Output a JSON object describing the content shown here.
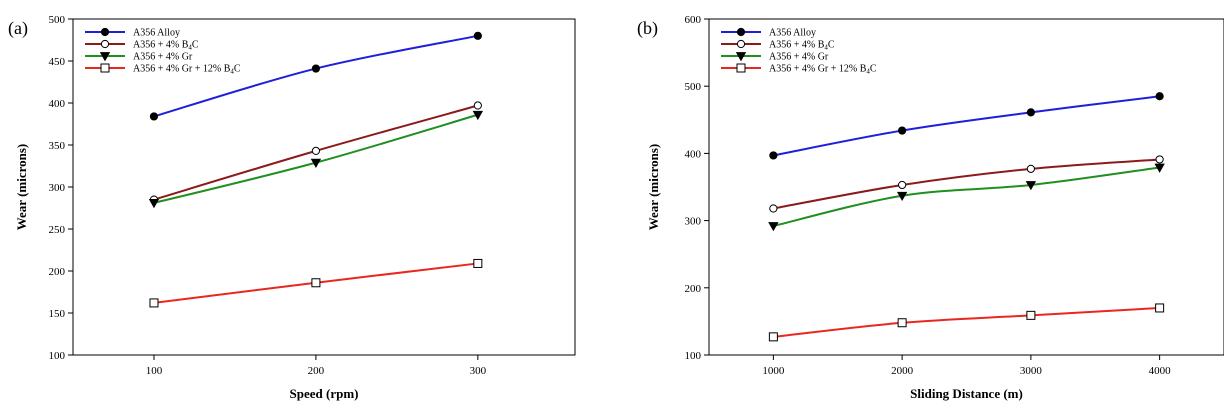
{
  "chart_data": [
    {
      "panel_label": "(a)",
      "type": "line",
      "xlabel": "Speed (rpm)",
      "ylabel": "Wear (microns)",
      "x": [
        100,
        200,
        300
      ],
      "x_ticks": [
        100,
        200,
        300
      ],
      "xlim": [
        50,
        360
      ],
      "ylim": [
        100,
        500
      ],
      "y_ticks": [
        100,
        150,
        200,
        250,
        300,
        350,
        400,
        450,
        500
      ],
      "legend_position": "top-left",
      "grid": false,
      "series": [
        {
          "name": "A356 Alloy",
          "color": "#1f1fdb",
          "marker": "filled-circle",
          "values": [
            384,
            441,
            480
          ]
        },
        {
          "name": "A356 + 4% B4C",
          "color": "#8b1a1a",
          "marker": "open-circle",
          "values": [
            285,
            343,
            397
          ]
        },
        {
          "name": "A356 + 4% Gr",
          "color": "#1f8f1f",
          "marker": "filled-triangle-down",
          "values": [
            281,
            329,
            386
          ]
        },
        {
          "name": "A356 + 4% Gr + 12% B4C",
          "color": "#e8281e",
          "marker": "open-square",
          "values": [
            162,
            186,
            209
          ]
        }
      ]
    },
    {
      "panel_label": "(b)",
      "type": "line",
      "xlabel": "Sliding Distance (m)",
      "ylabel": "Wear (microns)",
      "x": [
        1000,
        2000,
        3000,
        4000
      ],
      "x_ticks": [
        1000,
        2000,
        3000,
        4000
      ],
      "xlim": [
        500,
        4500
      ],
      "ylim": [
        100,
        600
      ],
      "y_ticks": [
        100,
        200,
        300,
        400,
        500,
        600
      ],
      "legend_position": "top-left",
      "grid": false,
      "series": [
        {
          "name": "A356 Alloy",
          "color": "#1f1fdb",
          "marker": "filled-circle",
          "values": [
            397,
            434,
            461,
            485
          ]
        },
        {
          "name": "A356 + 4% B4C",
          "color": "#8b1a1a",
          "marker": "open-circle",
          "values": [
            318,
            353,
            377,
            391
          ]
        },
        {
          "name": "A356 + 4% Gr",
          "color": "#1f8f1f",
          "marker": "filled-triangle-down",
          "values": [
            292,
            337,
            353,
            379
          ]
        },
        {
          "name": "A356 + 4% Gr + 12% B4C",
          "color": "#e8281e",
          "marker": "open-square",
          "values": [
            127,
            148,
            159,
            170
          ]
        }
      ]
    }
  ]
}
